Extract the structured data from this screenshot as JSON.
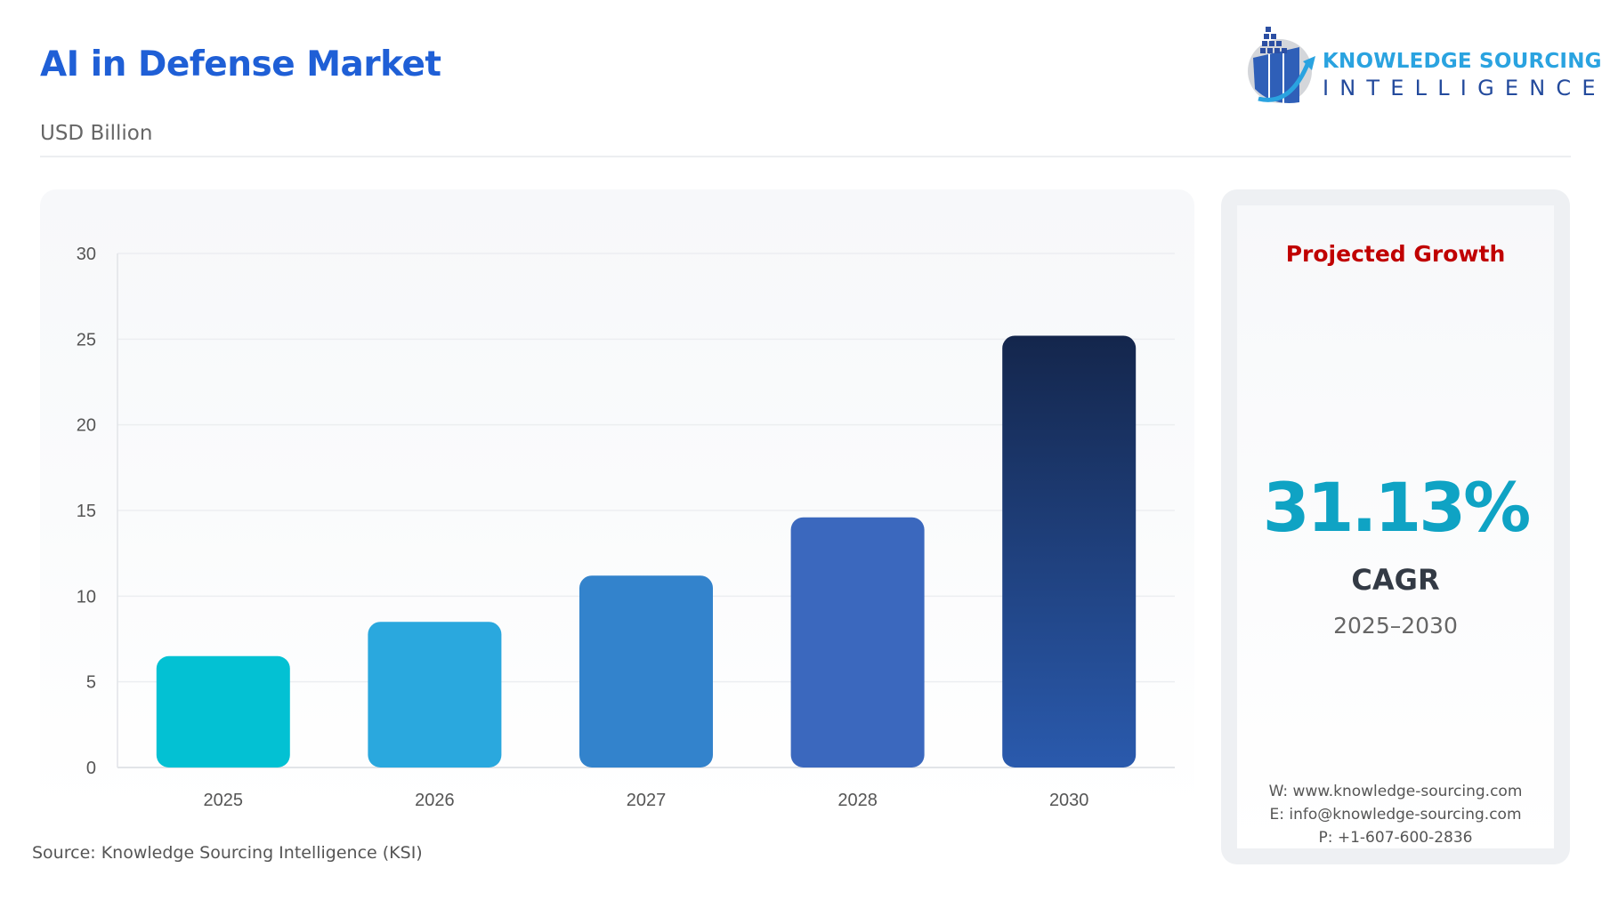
{
  "header": {
    "title": "AI in Defense Market",
    "subtitle": "USD Billion"
  },
  "logo": {
    "line1": "KNOWLEDGE SOURCING",
    "line2": "INTELLIGENCE"
  },
  "chart_data": {
    "type": "bar",
    "categories": [
      "2025",
      "2026",
      "2027",
      "2028",
      "2030"
    ],
    "values": [
      6.5,
      8.5,
      11.2,
      14.6,
      25.2
    ],
    "ylim": [
      0,
      30
    ],
    "yticks": [
      "0",
      "5",
      "10",
      "15",
      "20",
      "25",
      "30"
    ],
    "grid": true,
    "colors": [
      "#03c1d3",
      "#2aa8de",
      "#3383cc",
      "#3b68be",
      [
        "#14264c",
        "#2a5aad"
      ]
    ]
  },
  "growth": {
    "heading": "Projected Growth",
    "value": "31.13%",
    "label": "CAGR",
    "period": "2025–2030",
    "heading_color": "#c00000",
    "value_color": "#0fa3c4"
  },
  "contact": {
    "web": "W: www.knowledge-sourcing.com",
    "email": "E: info@knowledge-sourcing.com",
    "phone": "P: +1-607-600-2836"
  },
  "source": "Source: Knowledge Sourcing Intelligence (KSI)"
}
